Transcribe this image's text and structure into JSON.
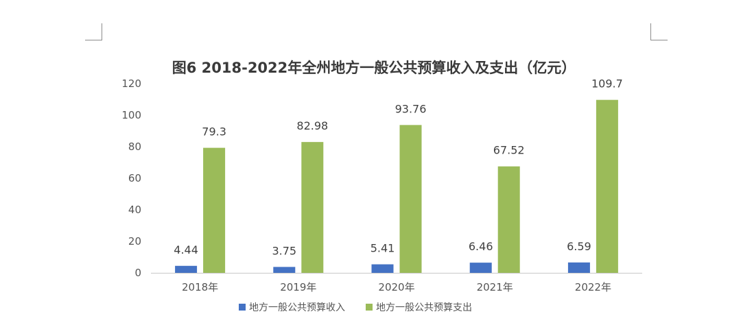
{
  "chart_data": {
    "type": "bar",
    "title": "图6  2018-2022年全州地方一般公共预算收入及支出（亿元）",
    "categories": [
      "2018年",
      "2019年",
      "2020年",
      "2021年",
      "2022年"
    ],
    "series": [
      {
        "name": "地方一般公共预算收入",
        "values": [
          4.44,
          3.75,
          5.41,
          6.46,
          6.59
        ],
        "color": "#4472c4",
        "labels": [
          "4.44",
          "3.75",
          "5.41",
          "6.46",
          "6.59"
        ]
      },
      {
        "name": "地方一般公共预算支出",
        "values": [
          79.3,
          82.98,
          93.76,
          67.52,
          109.7
        ],
        "color": "#9bbb59",
        "labels": [
          "79.3",
          "82.98",
          "93.76",
          "67.52",
          "109.7"
        ]
      }
    ],
    "ylim": [
      0,
      120
    ],
    "yticks": [
      0,
      20,
      40,
      60,
      80,
      100,
      120
    ],
    "grid": false,
    "legend": "bottom"
  }
}
